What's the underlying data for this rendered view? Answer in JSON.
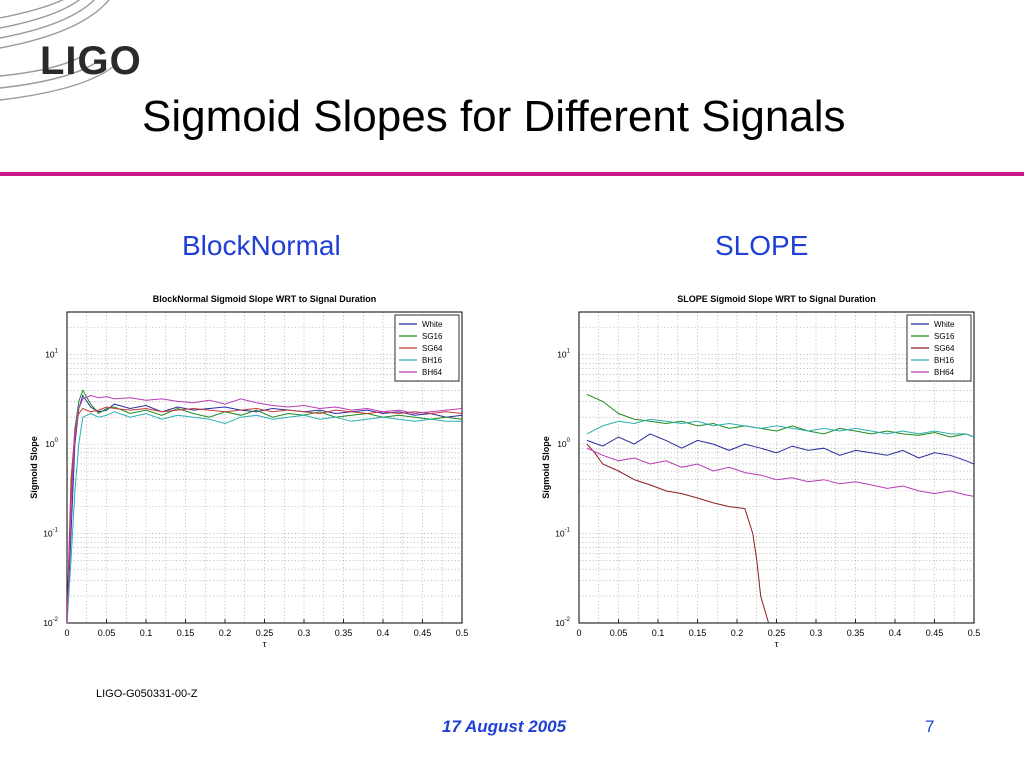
{
  "slide": {
    "logo_text": "LIGO",
    "title": "Sigmoid Slopes for Different Signals",
    "doc_id": "LIGO-G050331-00-Z",
    "date": "17 August 2005",
    "page_number": "7",
    "accent_color": "#c8188c",
    "heading_color": "#1f3fd6"
  },
  "panels": [
    {
      "heading": "BlockNormal"
    },
    {
      "heading": "SLOPE"
    }
  ],
  "chart_data": [
    {
      "type": "line",
      "title": "BlockNormal Sigmoid Slope WRT to Signal Duration",
      "xlabel": "τ",
      "ylabel": "Sigmoid Slope",
      "xlim": [
        0,
        0.5
      ],
      "ylim": [
        0.01,
        30
      ],
      "yscale": "log",
      "grid": true,
      "legend": "top-right",
      "x_ticks": [
        "0",
        "0.05",
        "0.1",
        "0.15",
        "0.2",
        "0.25",
        "0.3",
        "0.35",
        "0.4",
        "0.45",
        "0.5"
      ],
      "y_ticks": [
        {
          "base": "10",
          "exp": "1",
          "value": 10
        },
        {
          "base": "10",
          "exp": "0",
          "value": 1
        },
        {
          "base": "10",
          "exp": "-1",
          "value": 0.1
        },
        {
          "base": "10",
          "exp": "-2",
          "value": 0.01
        }
      ],
      "series": [
        {
          "name": "White",
          "color": "#2b2b9e",
          "x": [
            0,
            0.005,
            0.01,
            0.015,
            0.02,
            0.03,
            0.04,
            0.05,
            0.06,
            0.08,
            0.1,
            0.12,
            0.14,
            0.16,
            0.18,
            0.2,
            0.22,
            0.24,
            0.26,
            0.28,
            0.3,
            0.32,
            0.34,
            0.36,
            0.38,
            0.4,
            0.42,
            0.44,
            0.46,
            0.48,
            0.5
          ],
          "y": [
            0.01,
            0.1,
            1.0,
            2.5,
            3.5,
            2.6,
            2.3,
            2.4,
            2.8,
            2.5,
            2.7,
            2.3,
            2.6,
            2.4,
            2.5,
            2.6,
            2.4,
            2.3,
            2.5,
            2.4,
            2.3,
            2.4,
            2.2,
            2.3,
            2.4,
            2.2,
            2.3,
            2.1,
            2.2,
            2.0,
            2.1
          ]
        },
        {
          "name": "SG16",
          "color": "#1f8a1f",
          "x": [
            0,
            0.005,
            0.01,
            0.015,
            0.02,
            0.03,
            0.04,
            0.05,
            0.06,
            0.08,
            0.1,
            0.12,
            0.14,
            0.16,
            0.18,
            0.2,
            0.22,
            0.24,
            0.26,
            0.28,
            0.3,
            0.32,
            0.34,
            0.36,
            0.38,
            0.4,
            0.42,
            0.44,
            0.46,
            0.48,
            0.5
          ],
          "y": [
            0.01,
            0.3,
            1.5,
            3.0,
            4.0,
            2.8,
            2.2,
            2.5,
            2.6,
            2.2,
            2.4,
            2.1,
            2.5,
            2.2,
            2.0,
            2.3,
            2.1,
            2.4,
            2.0,
            2.2,
            2.1,
            2.3,
            2.0,
            2.1,
            2.2,
            2.0,
            2.1,
            2.0,
            1.9,
            2.0,
            1.9
          ]
        },
        {
          "name": "SG64",
          "color": "#c83a3a",
          "x": [
            0,
            0.005,
            0.01,
            0.015,
            0.02,
            0.03,
            0.04,
            0.05,
            0.06,
            0.08,
            0.1,
            0.12,
            0.14,
            0.16,
            0.18,
            0.2,
            0.22,
            0.24,
            0.26,
            0.28,
            0.3,
            0.32,
            0.34,
            0.36,
            0.38,
            0.4,
            0.42,
            0.44,
            0.46,
            0.48,
            0.5
          ],
          "y": [
            0.01,
            0.4,
            1.4,
            2.2,
            2.5,
            2.3,
            2.4,
            2.6,
            2.5,
            2.4,
            2.5,
            2.3,
            2.4,
            2.5,
            2.4,
            2.3,
            2.4,
            2.5,
            2.3,
            2.4,
            2.3,
            2.2,
            2.4,
            2.3,
            2.2,
            2.3,
            2.2,
            2.3,
            2.2,
            2.3,
            2.2
          ]
        },
        {
          "name": "BH16",
          "color": "#2ab0b0",
          "x": [
            0,
            0.005,
            0.01,
            0.015,
            0.02,
            0.03,
            0.04,
            0.05,
            0.06,
            0.08,
            0.1,
            0.12,
            0.14,
            0.16,
            0.18,
            0.2,
            0.22,
            0.24,
            0.26,
            0.28,
            0.3,
            0.32,
            0.34,
            0.36,
            0.38,
            0.4,
            0.42,
            0.44,
            0.46,
            0.48,
            0.5
          ],
          "y": [
            0.01,
            0.05,
            0.3,
            1.0,
            2.0,
            2.2,
            2.0,
            2.1,
            2.3,
            2.0,
            2.2,
            1.9,
            2.1,
            2.0,
            1.9,
            1.7,
            2.0,
            2.1,
            1.9,
            2.0,
            2.1,
            1.9,
            2.0,
            1.8,
            1.9,
            2.0,
            1.9,
            1.8,
            1.9,
            1.8,
            1.8
          ]
        },
        {
          "name": "BH64",
          "color": "#b93cb9",
          "x": [
            0,
            0.005,
            0.01,
            0.015,
            0.02,
            0.03,
            0.04,
            0.05,
            0.06,
            0.08,
            0.1,
            0.12,
            0.14,
            0.16,
            0.18,
            0.2,
            0.22,
            0.24,
            0.26,
            0.28,
            0.3,
            0.32,
            0.34,
            0.36,
            0.38,
            0.4,
            0.42,
            0.44,
            0.46,
            0.48,
            0.5
          ],
          "y": [
            0.01,
            0.2,
            1.2,
            2.5,
            3.2,
            3.5,
            3.3,
            3.4,
            3.2,
            3.3,
            3.1,
            3.2,
            3.0,
            2.9,
            3.1,
            2.8,
            3.2,
            2.9,
            2.7,
            2.6,
            2.7,
            2.5,
            2.6,
            2.4,
            2.5,
            2.3,
            2.4,
            2.2,
            2.3,
            2.4,
            2.5
          ]
        }
      ]
    },
    {
      "type": "line",
      "title": "SLOPE Sigmoid Slope WRT to Signal Duration",
      "xlabel": "τ",
      "ylabel": "Sigmoid Slope",
      "xlim": [
        0,
        0.5
      ],
      "ylim": [
        0.01,
        30
      ],
      "yscale": "log",
      "grid": true,
      "legend": "top-right",
      "x_ticks": [
        "0",
        "0.05",
        "0.1",
        "0.15",
        "0.2",
        "0.25",
        "0.3",
        "0.35",
        "0.4",
        "0.45",
        "0.5"
      ],
      "y_ticks": [
        {
          "base": "10",
          "exp": "1",
          "value": 10
        },
        {
          "base": "10",
          "exp": "0",
          "value": 1
        },
        {
          "base": "10",
          "exp": "-1",
          "value": 0.1
        },
        {
          "base": "10",
          "exp": "-2",
          "value": 0.01
        }
      ],
      "series": [
        {
          "name": "White",
          "color": "#2b2b9e",
          "x": [
            0.01,
            0.03,
            0.05,
            0.07,
            0.09,
            0.11,
            0.13,
            0.15,
            0.17,
            0.19,
            0.21,
            0.23,
            0.25,
            0.27,
            0.29,
            0.31,
            0.33,
            0.35,
            0.37,
            0.39,
            0.41,
            0.43,
            0.45,
            0.47,
            0.49,
            0.5
          ],
          "y": [
            1.1,
            0.95,
            1.2,
            1.0,
            1.3,
            1.1,
            0.9,
            1.1,
            1.0,
            0.85,
            1.0,
            0.9,
            0.8,
            0.95,
            0.85,
            0.9,
            0.75,
            0.85,
            0.8,
            0.75,
            0.85,
            0.7,
            0.8,
            0.75,
            0.65,
            0.6
          ]
        },
        {
          "name": "SG16",
          "color": "#1f8a1f",
          "x": [
            0.01,
            0.03,
            0.05,
            0.07,
            0.09,
            0.11,
            0.13,
            0.15,
            0.17,
            0.19,
            0.21,
            0.23,
            0.25,
            0.27,
            0.29,
            0.31,
            0.33,
            0.35,
            0.37,
            0.39,
            0.41,
            0.43,
            0.45,
            0.47,
            0.49,
            0.5
          ],
          "y": [
            3.6,
            3.0,
            2.2,
            1.9,
            1.8,
            1.7,
            1.8,
            1.6,
            1.7,
            1.5,
            1.6,
            1.5,
            1.4,
            1.6,
            1.4,
            1.3,
            1.5,
            1.4,
            1.3,
            1.4,
            1.3,
            1.25,
            1.35,
            1.2,
            1.3,
            1.2
          ]
        },
        {
          "name": "SG64",
          "color": "#8a2020",
          "x": [
            0.01,
            0.02,
            0.03,
            0.05,
            0.07,
            0.09,
            0.11,
            0.13,
            0.15,
            0.17,
            0.19,
            0.21,
            0.22,
            0.225,
            0.23,
            0.24
          ],
          "y": [
            1.0,
            0.8,
            0.6,
            0.5,
            0.4,
            0.35,
            0.3,
            0.28,
            0.25,
            0.22,
            0.2,
            0.19,
            0.1,
            0.05,
            0.02,
            0.01
          ]
        },
        {
          "name": "BH16",
          "color": "#2ab0b0",
          "x": [
            0.01,
            0.03,
            0.05,
            0.07,
            0.09,
            0.11,
            0.13,
            0.15,
            0.17,
            0.19,
            0.21,
            0.23,
            0.25,
            0.27,
            0.29,
            0.31,
            0.33,
            0.35,
            0.37,
            0.39,
            0.41,
            0.43,
            0.45,
            0.47,
            0.49,
            0.5
          ],
          "y": [
            1.3,
            1.6,
            1.8,
            1.7,
            1.9,
            1.8,
            1.7,
            1.8,
            1.6,
            1.7,
            1.6,
            1.5,
            1.6,
            1.5,
            1.4,
            1.5,
            1.4,
            1.5,
            1.4,
            1.3,
            1.4,
            1.3,
            1.4,
            1.3,
            1.3,
            1.2
          ]
        },
        {
          "name": "BH64",
          "color": "#b93cb9",
          "x": [
            0.01,
            0.03,
            0.05,
            0.07,
            0.09,
            0.11,
            0.13,
            0.15,
            0.17,
            0.19,
            0.21,
            0.23,
            0.25,
            0.27,
            0.29,
            0.31,
            0.33,
            0.35,
            0.37,
            0.39,
            0.41,
            0.43,
            0.45,
            0.47,
            0.49,
            0.5
          ],
          "y": [
            0.9,
            0.75,
            0.65,
            0.7,
            0.6,
            0.65,
            0.55,
            0.6,
            0.5,
            0.55,
            0.48,
            0.45,
            0.4,
            0.42,
            0.38,
            0.4,
            0.36,
            0.38,
            0.35,
            0.32,
            0.34,
            0.3,
            0.28,
            0.3,
            0.27,
            0.26
          ]
        }
      ]
    }
  ]
}
